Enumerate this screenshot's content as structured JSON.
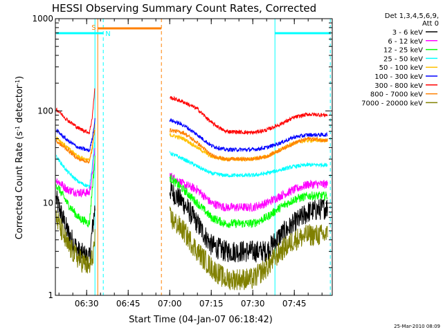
{
  "chart_data": {
    "type": "line",
    "title": "HESSI Observing Summary Count Rates, Corrected",
    "xlabel": "Start Time (04-Jan-07 06:18:42)",
    "ylabel_main": "Corrected Count Rate (s",
    "ylabel_sup1": "-1",
    "ylabel_mid": " detector",
    "ylabel_sup2": "-1",
    "ylabel_end": ")",
    "yscale": "log",
    "ylim": [
      1,
      1000
    ],
    "xlim": [
      "06:18:42",
      "07:58:42"
    ],
    "x_ticks": [
      "06:30",
      "06:45",
      "07:00",
      "07:15",
      "07:30",
      "07:45"
    ],
    "y_ticks": [
      "1",
      "10",
      "100",
      "1000"
    ],
    "legend_header": [
      "Det 1,3,4,5,6,9,",
      "Att 0"
    ],
    "timestamp": "25-Mar-2010 08:09",
    "flags": [
      {
        "label": "S",
        "color": "#ff8000",
        "start": "06:34",
        "end": "06:57"
      },
      {
        "label": "N",
        "color": "#00ffff",
        "start": "06:19",
        "end": "06:36"
      },
      {
        "label": "",
        "color": "#00ffff",
        "start": "07:38",
        "end": "07:58"
      }
    ],
    "vlines": [
      {
        "time": "06:33",
        "color": "#00ffff",
        "style": "solid"
      },
      {
        "time": "06:36",
        "color": "#00ffff",
        "style": "dashed"
      },
      {
        "time": "06:34",
        "color": "#ff8000",
        "style": "solid"
      },
      {
        "time": "06:57",
        "color": "#ff8000",
        "style": "dashed"
      },
      {
        "time": "07:38",
        "color": "#00ffff",
        "style": "solid"
      },
      {
        "time": "07:58",
        "color": "#00ffff",
        "style": "dashed"
      }
    ],
    "series": [
      {
        "name": "3 - 6 keV",
        "color": "#000000",
        "t1": [
          "06:19",
          "06:23",
          "06:27",
          "06:31",
          "06:32",
          "06:33"
        ],
        "v1": [
          11,
          5,
          3,
          2.5,
          5,
          9
        ],
        "t2": [
          "07:00",
          "07:05",
          "07:10",
          "07:15",
          "07:20",
          "07:30",
          "07:35",
          "07:40",
          "07:45",
          "07:50",
          "07:57"
        ],
        "v2": [
          14,
          10,
          6,
          3.5,
          3,
          3,
          3,
          4.5,
          6,
          8,
          9
        ]
      },
      {
        "name": "6 - 12 keV",
        "color": "#ff00ff",
        "t1": [
          "06:19",
          "06:23",
          "06:27",
          "06:31",
          "06:32",
          "06:33"
        ],
        "v1": [
          18,
          14,
          13,
          13,
          20,
          40
        ],
        "t2": [
          "07:00",
          "07:05",
          "07:10",
          "07:15",
          "07:20",
          "07:30",
          "07:35",
          "07:40",
          "07:45",
          "07:50",
          "07:57"
        ],
        "v2": [
          20,
          16,
          14,
          10,
          9,
          9,
          10,
          12,
          14,
          16,
          16
        ]
      },
      {
        "name": "12 - 25 keV",
        "color": "#00ff00",
        "t1": [
          "06:19",
          "06:23",
          "06:27",
          "06:31",
          "06:32",
          "06:33"
        ],
        "v1": [
          16,
          10,
          7,
          6,
          14,
          30
        ],
        "t2": [
          "07:00",
          "07:05",
          "07:10",
          "07:15",
          "07:20",
          "07:30",
          "07:35",
          "07:40",
          "07:45",
          "07:50",
          "07:57"
        ],
        "v2": [
          19,
          14,
          10,
          7,
          6,
          6,
          7,
          9,
          11,
          12,
          12
        ]
      },
      {
        "name": "25 - 50 keV",
        "color": "#00ffff",
        "t1": [
          "06:19",
          "06:23",
          "06:27",
          "06:31",
          "06:32",
          "06:33"
        ],
        "v1": [
          32,
          22,
          17,
          15,
          25,
          50
        ],
        "t2": [
          "07:00",
          "07:05",
          "07:10",
          "07:15",
          "07:20",
          "07:30",
          "07:35",
          "07:40",
          "07:45",
          "07:50",
          "07:57"
        ],
        "v2": [
          35,
          30,
          25,
          21,
          20,
          20,
          21,
          23,
          25,
          26,
          26
        ]
      },
      {
        "name": "50 - 100 keV",
        "color": "#ffc000",
        "t1": [
          "06:19",
          "06:23",
          "06:27",
          "06:31",
          "06:32",
          "06:33"
        ],
        "v1": [
          52,
          40,
          32,
          29,
          40,
          70
        ],
        "t2": [
          "07:00",
          "07:05",
          "07:10",
          "07:15",
          "07:20",
          "07:30",
          "07:35",
          "07:40",
          "07:45",
          "07:50",
          "07:57"
        ],
        "v2": [
          55,
          50,
          40,
          32,
          30,
          30,
          32,
          38,
          45,
          48,
          48
        ]
      },
      {
        "name": "100 - 300 keV",
        "color": "#0000ff",
        "t1": [
          "06:19",
          "06:23",
          "06:27",
          "06:31",
          "06:32",
          "06:33"
        ],
        "v1": [
          62,
          48,
          40,
          37,
          50,
          80
        ],
        "t2": [
          "07:00",
          "07:05",
          "07:10",
          "07:15",
          "07:20",
          "07:30",
          "07:35",
          "07:40",
          "07:45",
          "07:50",
          "07:57"
        ],
        "v2": [
          80,
          70,
          55,
          42,
          38,
          38,
          40,
          45,
          52,
          55,
          55
        ]
      },
      {
        "name": "300 - 800 keV",
        "color": "#ff0000",
        "t1": [
          "06:19",
          "06:23",
          "06:27",
          "06:31",
          "06:32",
          "06:33"
        ],
        "v1": [
          105,
          80,
          65,
          58,
          85,
          180
        ],
        "t2": [
          "07:00",
          "07:05",
          "07:10",
          "07:15",
          "07:20",
          "07:30",
          "07:35",
          "07:40",
          "07:45",
          "07:50",
          "07:57"
        ],
        "v2": [
          140,
          125,
          105,
          75,
          60,
          58,
          62,
          72,
          85,
          92,
          90
        ]
      },
      {
        "name": "800 - 7000 keV",
        "color": "#ff8000",
        "t1": [
          "06:19",
          "06:23",
          "06:27",
          "06:31",
          "06:32",
          "06:33"
        ],
        "v1": [
          47,
          38,
          30,
          28,
          38,
          65
        ],
        "t2": [
          "07:00",
          "07:05",
          "07:10",
          "07:15",
          "07:20",
          "07:30",
          "07:35",
          "07:40",
          "07:45",
          "07:50",
          "07:57"
        ],
        "v2": [
          62,
          58,
          45,
          33,
          30,
          30,
          32,
          38,
          45,
          50,
          48
        ]
      },
      {
        "name": "7000 - 20000 keV",
        "color": "#808000",
        "t1": [
          "06:19",
          "06:23",
          "06:27",
          "06:31",
          "06:32",
          "06:33"
        ],
        "v1": [
          7,
          3.5,
          2.5,
          2,
          2.5,
          4
        ],
        "t2": [
          "07:00",
          "07:05",
          "07:10",
          "07:15",
          "07:20",
          "07:30",
          "07:35",
          "07:40",
          "07:45",
          "07:50",
          "07:57"
        ],
        "v2": [
          7,
          5,
          3,
          2,
          1.5,
          1.5,
          2,
          3,
          4,
          4.5,
          4.5
        ]
      }
    ]
  }
}
